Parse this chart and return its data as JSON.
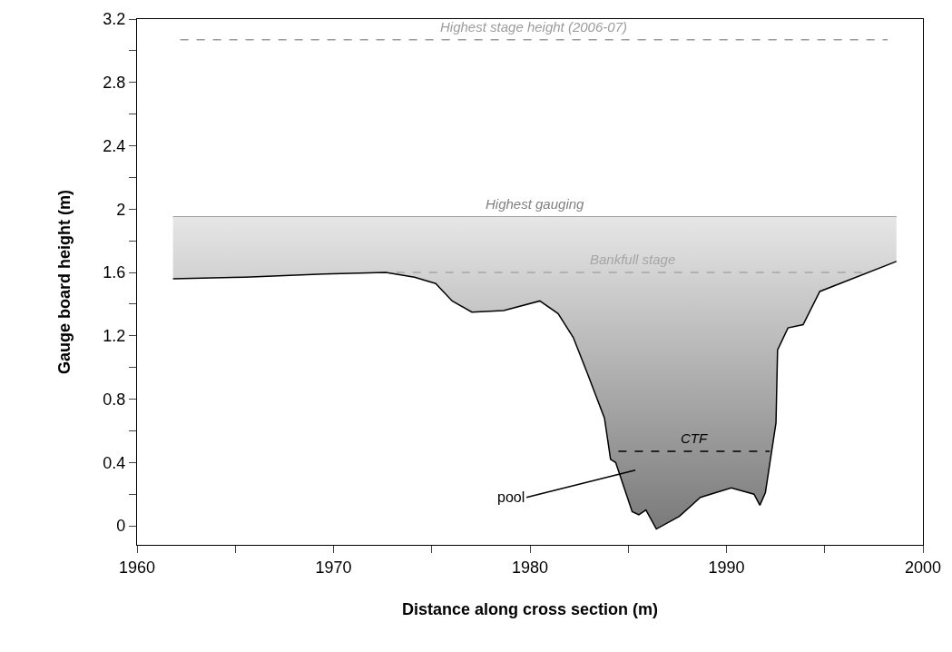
{
  "chart_data": {
    "type": "line",
    "xlabel": "Distance along cross section (m)",
    "ylabel": "Gauge board height (m)",
    "xlim": [
      1960,
      2000
    ],
    "ylim": [
      -0.12,
      3.2
    ],
    "xticks": [
      1960,
      {
        "value": 1965,
        "label": null
      },
      1970,
      {
        "value": 1975,
        "label": null
      },
      1980,
      {
        "value": 1985,
        "label": null
      },
      1990,
      {
        "value": 1995,
        "label": null
      },
      2000
    ],
    "yticks": [
      0,
      {
        "value": 0.2,
        "label": null
      },
      0.4,
      {
        "value": 0.6,
        "label": null
      },
      0.8,
      {
        "value": 1.0,
        "label": null
      },
      1.2,
      {
        "value": 1.4,
        "label": null
      },
      1.6,
      {
        "value": 1.8,
        "label": null
      },
      2,
      {
        "value": 2.2,
        "label": null
      },
      2.4,
      {
        "value": 2.6,
        "label": null
      },
      2.8,
      {
        "value": 3.0,
        "label": null
      },
      3.2
    ],
    "grid": false,
    "legend": false,
    "marker": "none",
    "series": [
      {
        "name": "Highest gauging",
        "color": "#808080",
        "line_style": "solid",
        "x": [
          1961.83,
          1998.65
        ],
        "values": [
          1.95,
          1.95
        ]
      },
      {
        "color": "#000000",
        "line_style": "solid",
        "x": [
          1961.83,
          1965.5,
          1969.5,
          1972.66,
          1974.12,
          1975.2,
          1976.04,
          1977.04,
          1978.66,
          1980.5,
          1981.43,
          1982.2,
          1982.9,
          1983.79,
          1984.1,
          1984.36,
          1985.2,
          1985.54,
          1985.9,
          1986.43,
          1987.6,
          1988.67,
          1990.24,
          1991.4,
          1991.7,
          1991.98,
          1992.52,
          1992.6,
          1993.13,
          1993.9,
          1994.75,
          1998.65
        ],
        "values": [
          1.56,
          1.57,
          1.59,
          1.6,
          1.57,
          1.53,
          1.42,
          1.35,
          1.36,
          1.42,
          1.34,
          1.19,
          0.97,
          0.68,
          0.42,
          0.4,
          0.09,
          0.07,
          0.1,
          -0.02,
          0.06,
          0.18,
          0.24,
          0.2,
          0.13,
          0.21,
          0.65,
          1.11,
          1.25,
          1.27,
          1.48,
          1.67
        ],
        "lower": [
          1.56,
          1.57,
          1.59,
          1.6,
          1.57,
          1.53,
          1.42,
          1.35,
          1.36,
          1.42,
          1.34,
          1.19,
          0.97,
          0.68,
          0.42,
          0.4,
          0.09,
          0.07,
          0.1,
          -0.02,
          0.06,
          0.18,
          0.24,
          0.2,
          0.13,
          0.21,
          0.65,
          1.11,
          1.25,
          1.27,
          1.48,
          1.67
        ],
        "upper": [
          1.95,
          1.95,
          1.95,
          1.95,
          1.95,
          1.95,
          1.95,
          1.95,
          1.95,
          1.95,
          1.95,
          1.95,
          1.95,
          1.95,
          1.95,
          1.95,
          1.95,
          1.95,
          1.95,
          1.95,
          1.95,
          1.95,
          1.95,
          1.95,
          1.95,
          1.95,
          1.95,
          1.95,
          1.95,
          1.95,
          1.95,
          1.95
        ]
      },
      {
        "name": "Bankfull stage",
        "color": "#a6a6a6",
        "line_style": "dashed",
        "x": [
          1973.2,
          1997.2
        ],
        "values": [
          1.6,
          1.6
        ]
      },
      {
        "name": "Highest stage height (2006-07)",
        "color": "#9c9c9c",
        "line_style": "dashed",
        "x": [
          1962.2,
          1998.2
        ],
        "values": [
          3.07,
          3.07
        ]
      },
      {
        "name": "CTF",
        "color": "#000000",
        "line_style": "dashed",
        "x": [
          1984.5,
          1992.2
        ],
        "values": [
          0.47,
          0.47
        ]
      }
    ],
    "annotations": [
      "pool"
    ]
  }
}
